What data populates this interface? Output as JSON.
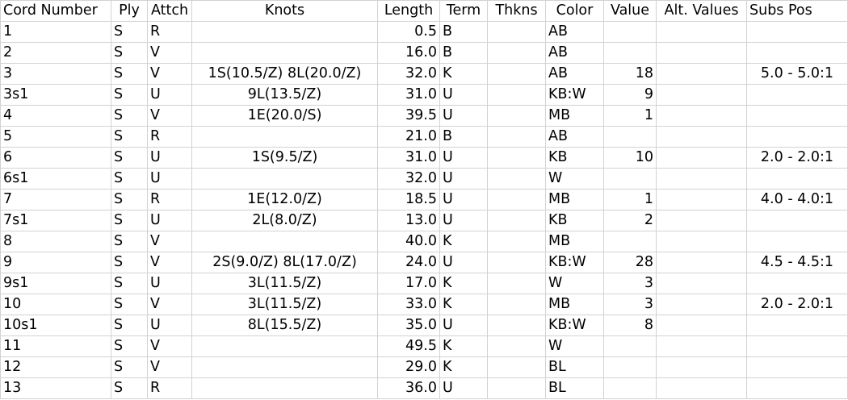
{
  "headers": [
    "Cord Number",
    "Ply",
    "Attch",
    "Knots",
    "Length",
    "Term",
    "Thkns",
    "Color",
    "Value",
    "Alt. Values",
    "Subs Pos"
  ],
  "rows": [
    [
      "1",
      "S",
      "R",
      "",
      "0.5",
      "B",
      "",
      "AB",
      "",
      "",
      ""
    ],
    [
      "2",
      "S",
      "V",
      "",
      "16.0",
      "B",
      "",
      "AB",
      "",
      "",
      ""
    ],
    [
      "3",
      "S",
      "V",
      "1S(10.5/Z) 8L(20.0/Z)",
      "32.0",
      "K",
      "",
      "AB",
      "18",
      "",
      "5.0 - 5.0:1"
    ],
    [
      "3s1",
      "S",
      "U",
      "9L(13.5/Z)",
      "31.0",
      "U",
      "",
      "KB:W",
      "9",
      "",
      ""
    ],
    [
      "4",
      "S",
      "V",
      "1E(20.0/S)",
      "39.5",
      "U",
      "",
      "MB",
      "1",
      "",
      ""
    ],
    [
      "5",
      "S",
      "R",
      "",
      "21.0",
      "B",
      "",
      "AB",
      "",
      "",
      ""
    ],
    [
      "6",
      "S",
      "U",
      "1S(9.5/Z)",
      "31.0",
      "U",
      "",
      "KB",
      "10",
      "",
      "2.0 - 2.0:1"
    ],
    [
      "6s1",
      "S",
      "U",
      "",
      "32.0",
      "U",
      "",
      "W",
      "",
      "",
      ""
    ],
    [
      "7",
      "S",
      "R",
      "1E(12.0/Z)",
      "18.5",
      "U",
      "",
      "MB",
      "1",
      "",
      "4.0 - 4.0:1"
    ],
    [
      "7s1",
      "S",
      "U",
      "2L(8.0/Z)",
      "13.0",
      "U",
      "",
      "KB",
      "2",
      "",
      ""
    ],
    [
      "8",
      "S",
      "V",
      "",
      "40.0",
      "K",
      "",
      "MB",
      "",
      "",
      ""
    ],
    [
      "9",
      "S",
      "V",
      "2S(9.0/Z) 8L(17.0/Z)",
      "24.0",
      "U",
      "",
      "KB:W",
      "28",
      "",
      "4.5 - 4.5:1"
    ],
    [
      "9s1",
      "S",
      "U",
      "3L(11.5/Z)",
      "17.0",
      "K",
      "",
      "W",
      "3",
      "",
      ""
    ],
    [
      "10",
      "S",
      "V",
      "3L(11.5/Z)",
      "33.0",
      "K",
      "",
      "MB",
      "3",
      "",
      "2.0 - 2.0:1"
    ],
    [
      "10s1",
      "S",
      "U",
      "8L(15.5/Z)",
      "35.0",
      "U",
      "",
      "KB:W",
      "8",
      "",
      ""
    ],
    [
      "11",
      "S",
      "V",
      "",
      "49.5",
      "K",
      "",
      "W",
      "",
      "",
      ""
    ],
    [
      "12",
      "S",
      "V",
      "",
      "29.0",
      "K",
      "",
      "BL",
      "",
      "",
      ""
    ],
    [
      "13",
      "S",
      "R",
      "",
      "36.0",
      "U",
      "",
      "BL",
      "",
      "",
      ""
    ]
  ]
}
